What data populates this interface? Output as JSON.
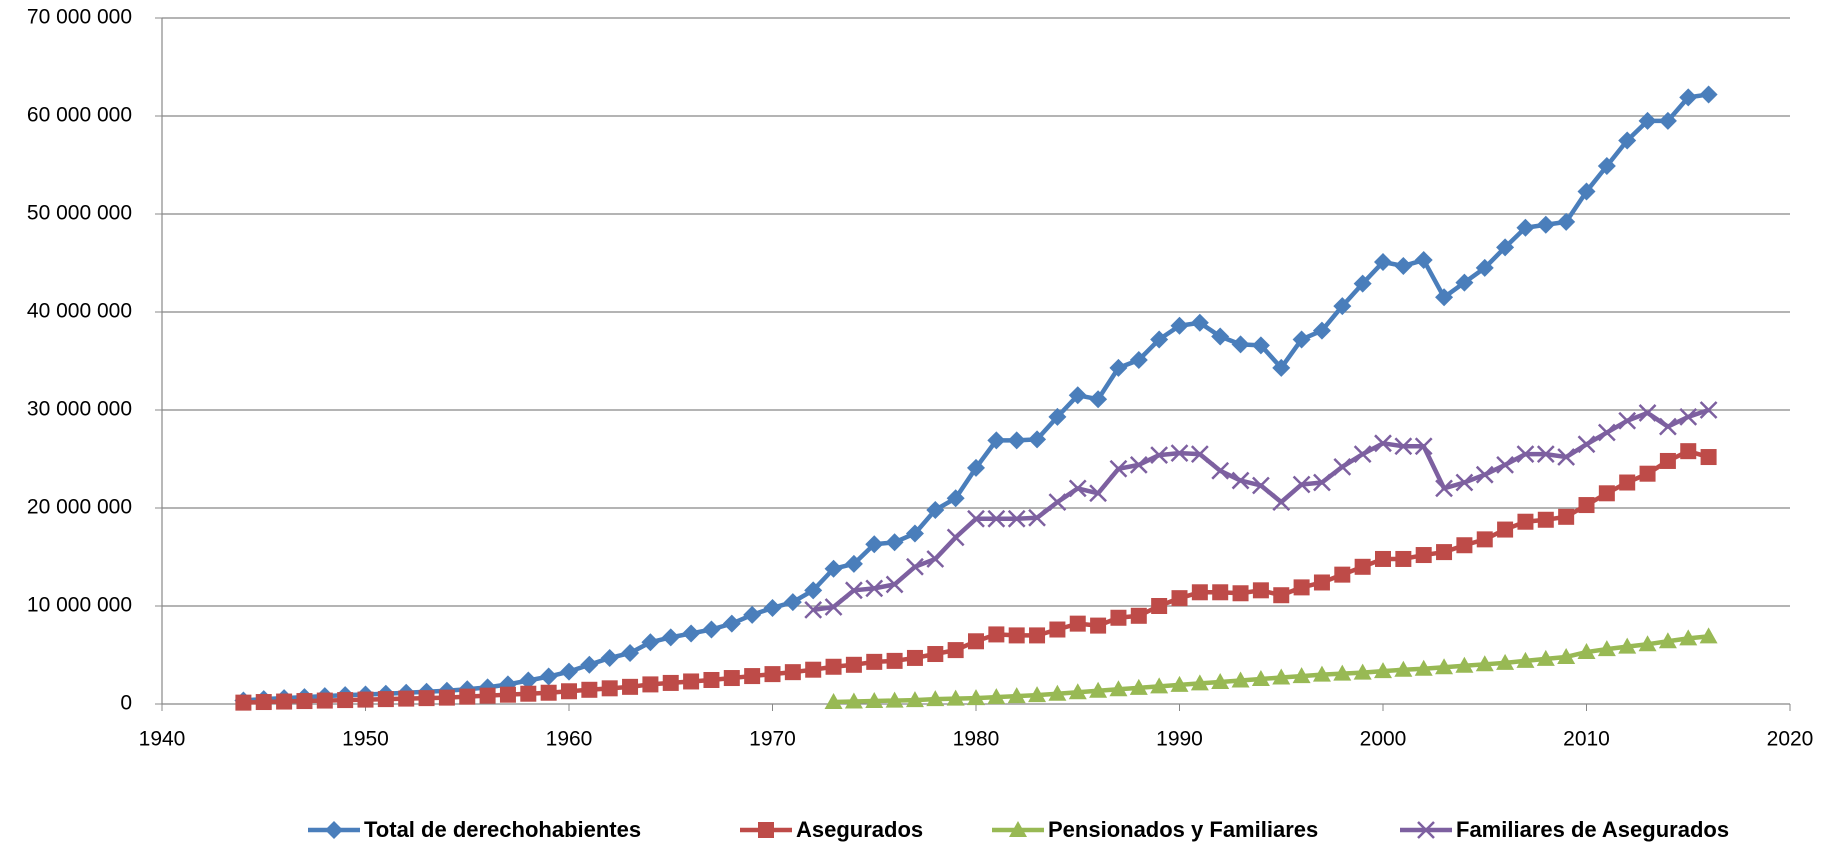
{
  "chart_data": {
    "type": "line",
    "x": [
      1944,
      1945,
      1946,
      1947,
      1948,
      1949,
      1950,
      1951,
      1952,
      1953,
      1954,
      1955,
      1956,
      1957,
      1958,
      1959,
      1960,
      1961,
      1962,
      1963,
      1964,
      1965,
      1966,
      1967,
      1968,
      1969,
      1970,
      1971,
      1972,
      1973,
      1974,
      1975,
      1976,
      1977,
      1978,
      1979,
      1980,
      1981,
      1982,
      1983,
      1984,
      1985,
      1986,
      1987,
      1988,
      1989,
      1990,
      1991,
      1992,
      1993,
      1994,
      1995,
      1996,
      1997,
      1998,
      1999,
      2000,
      2001,
      2002,
      2003,
      2004,
      2005,
      2006,
      2007,
      2008,
      2009,
      2010,
      2011,
      2012,
      2013,
      2014,
      2015,
      2016
    ],
    "series": [
      {
        "name": "Total de derechohabientes",
        "color": "#4a7ebb",
        "marker": "diamond",
        "values": [
          360000,
          500000,
          600000,
          700000,
          800000,
          900000,
          970000,
          1050000,
          1150000,
          1250000,
          1350000,
          1500000,
          1700000,
          2000000,
          2400000,
          2800000,
          3300000,
          4000000,
          4700000,
          5200000,
          6300000,
          6800000,
          7200000,
          7600000,
          8200000,
          9100000,
          9800000,
          10400000,
          11600000,
          13800000,
          14300000,
          16300000,
          16500000,
          17400000,
          19800000,
          21000000,
          24100000,
          26900000,
          26900000,
          27000000,
          29300000,
          31500000,
          31100000,
          34300000,
          35100000,
          37200000,
          38600000,
          38900000,
          37500000,
          36700000,
          36600000,
          34300000,
          37200000,
          38100000,
          40600000,
          42900000,
          45100000,
          44700000,
          45300000,
          41500000,
          43000000,
          44500000,
          46600000,
          48600000,
          48900000,
          49200000,
          52300000,
          54900000,
          57500000,
          59500000,
          59500000,
          61900000,
          62200000
        ]
      },
      {
        "name": "Asegurados",
        "color": "#be4b48",
        "marker": "square",
        "values": [
          140000,
          200000,
          250000,
          300000,
          350000,
          400000,
          450000,
          500000,
          550000,
          600000,
          650000,
          750000,
          850000,
          950000,
          1050000,
          1150000,
          1300000,
          1450000,
          1600000,
          1750000,
          2000000,
          2150000,
          2300000,
          2450000,
          2650000,
          2850000,
          3050000,
          3250000,
          3500000,
          3800000,
          4000000,
          4300000,
          4400000,
          4700000,
          5100000,
          5500000,
          6400000,
          7100000,
          7000000,
          7000000,
          7600000,
          8200000,
          8000000,
          8800000,
          9000000,
          10000000,
          10800000,
          11400000,
          11400000,
          11300000,
          11600000,
          11100000,
          11900000,
          12400000,
          13200000,
          14000000,
          14800000,
          14800000,
          15200000,
          15500000,
          16200000,
          16800000,
          17800000,
          18600000,
          18800000,
          19100000,
          20300000,
          21500000,
          22600000,
          23500000,
          24800000,
          25800000,
          25200000
        ]
      },
      {
        "name": "Pensionados y Familiares",
        "color": "#98b954",
        "marker": "triangle",
        "values": [
          null,
          null,
          null,
          null,
          null,
          null,
          null,
          null,
          null,
          null,
          null,
          null,
          null,
          null,
          null,
          null,
          null,
          null,
          null,
          null,
          null,
          null,
          null,
          null,
          null,
          null,
          null,
          null,
          null,
          200000,
          250000,
          300000,
          350000,
          400000,
          500000,
          550000,
          600000,
          700000,
          800000,
          900000,
          1050000,
          1200000,
          1350000,
          1500000,
          1650000,
          1800000,
          1950000,
          2100000,
          2250000,
          2400000,
          2550000,
          2700000,
          2850000,
          3000000,
          3100000,
          3200000,
          3350000,
          3500000,
          3600000,
          3750000,
          3900000,
          4050000,
          4200000,
          4400000,
          4600000,
          4800000,
          5300000,
          5600000,
          5850000,
          6100000,
          6400000,
          6700000,
          6900000
        ]
      },
      {
        "name": "Familiares de Asegurados",
        "color": "#7d60a0",
        "marker": "x",
        "values": [
          null,
          null,
          null,
          null,
          null,
          null,
          null,
          null,
          null,
          null,
          null,
          null,
          null,
          null,
          null,
          null,
          null,
          null,
          null,
          null,
          null,
          null,
          null,
          null,
          null,
          null,
          null,
          null,
          9600000,
          9900000,
          11600000,
          11800000,
          12200000,
          14000000,
          14800000,
          17000000,
          18900000,
          18900000,
          18900000,
          19000000,
          20600000,
          22000000,
          21500000,
          24000000,
          24400000,
          25400000,
          25600000,
          25500000,
          23800000,
          22800000,
          22300000,
          20600000,
          22400000,
          22600000,
          24200000,
          25500000,
          26600000,
          26300000,
          26300000,
          22000000,
          22600000,
          23400000,
          24400000,
          25500000,
          25500000,
          25200000,
          26500000,
          27700000,
          28900000,
          29700000,
          28300000,
          29300000,
          30000000
        ]
      }
    ],
    "xlim": [
      1940,
      2020
    ],
    "xticks": [
      1940,
      1950,
      1960,
      1970,
      1980,
      1990,
      2000,
      2010,
      2020
    ],
    "ylim": [
      0,
      70000000
    ],
    "yticks": [
      0,
      {
        "value": 10000000,
        "label": "10 000 000"
      },
      {
        "value": 20000000,
        "label": "20 000 000"
      },
      {
        "value": 30000000,
        "label": "30 000 000"
      },
      {
        "value": 40000000,
        "label": "40 000 000"
      },
      {
        "value": 50000000,
        "label": "50 000 000"
      },
      {
        "value": 60000000,
        "label": "60 000 000"
      },
      {
        "value": 70000000,
        "label": "70 000 000"
      }
    ],
    "grid": true,
    "legend": "bottom"
  }
}
